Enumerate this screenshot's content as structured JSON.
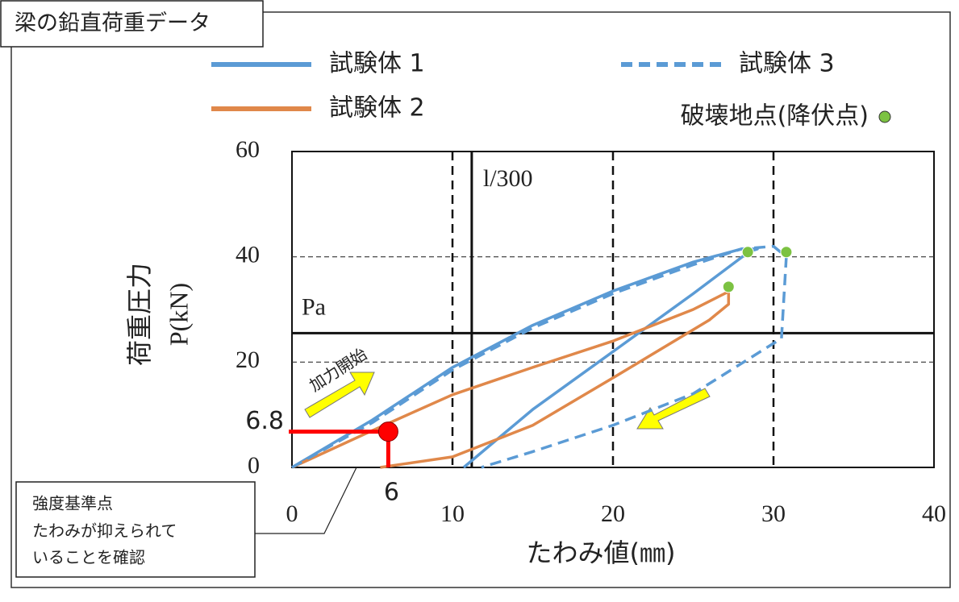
{
  "chart_data": {
    "type": "line",
    "title": "梁の鉛直荷重データ",
    "ylabel": "荷重圧力",
    "yunit": "P(kN)",
    "xlabel": "たわみ値(㎜)",
    "xlim": [
      0,
      40
    ],
    "ylim": [
      0,
      60
    ],
    "xticks": [
      0,
      10,
      20,
      30,
      40
    ],
    "yticks": [
      0,
      20,
      40,
      60
    ],
    "grid": true,
    "series": [
      {
        "name": "試験体 1",
        "color": "#5b9bd5",
        "linestyle": "solid",
        "x": [
          0,
          5,
          10,
          15,
          20,
          25,
          28,
          29,
          28.5,
          25,
          20,
          15,
          10.7
        ],
        "y": [
          0,
          9,
          19,
          27,
          33.5,
          39,
          41.5,
          41.5,
          41,
          33,
          22,
          11,
          0
        ]
      },
      {
        "name": "試験体 2",
        "color": "#e0884a",
        "linestyle": "solid",
        "x": [
          0,
          5,
          10,
          15,
          20,
          25,
          27.2,
          27.2,
          26,
          20,
          15,
          10,
          5.5
        ],
        "y": [
          0,
          7,
          13.8,
          19,
          24,
          30,
          33.4,
          31,
          28,
          17,
          8,
          2,
          0
        ]
      },
      {
        "name": "試験体 3",
        "color": "#5b9bd5",
        "linestyle": "dashed",
        "x": [
          0,
          5,
          10,
          15,
          20,
          25,
          28,
          30,
          30.8,
          30.5,
          25,
          20,
          15,
          11.8
        ],
        "y": [
          0,
          8.5,
          18.5,
          26.5,
          33,
          38.5,
          41.5,
          42,
          40,
          24.5,
          14,
          8,
          3,
          0
        ]
      },
      {
        "name": "破壊地点(降伏点)",
        "type": "scatter",
        "color": "#7cc242",
        "x": [
          28.4,
          30.8,
          27.2
        ],
        "y": [
          40.9,
          40.9,
          34.3
        ]
      }
    ],
    "reference_lines": [
      {
        "axis": "x",
        "value": 11.2,
        "label": "l/300"
      },
      {
        "axis": "y",
        "value": 25.5,
        "label": "Pa"
      }
    ],
    "marker": {
      "x": 6,
      "y": 6.8,
      "color": "#ff0000"
    },
    "callout": [
      "強度基準点",
      "たわみが抑えられて",
      "いることを確認"
    ],
    "arrow_label": "加力開始"
  }
}
